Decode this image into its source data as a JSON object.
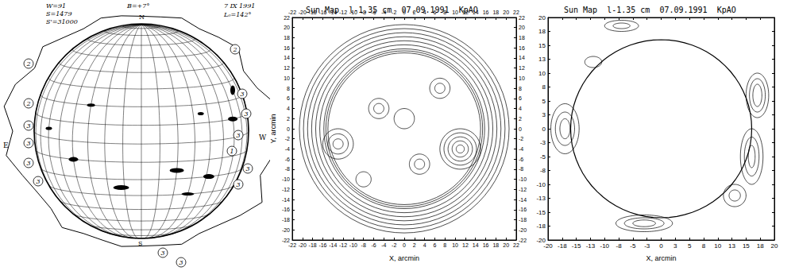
{
  "diagram": {
    "type": "solar_drawing",
    "stats": [
      "W=91",
      "S=1479",
      "S'=31000"
    ],
    "tilt": "B=+7°",
    "north": "N",
    "date": "7 IX 1991",
    "longitude": "L₀=142°",
    "east": "E",
    "west": "W",
    "south": "S",
    "regions": [
      "2",
      "2",
      "3",
      "3",
      "3",
      "3",
      "2",
      "3",
      "3",
      "3",
      "1",
      "3",
      "3",
      "3",
      "3"
    ]
  },
  "chart_data": [
    {
      "type": "contour",
      "title": "Sun Map  l-1.35 cm  07.09.1991  KpAO",
      "x_label": "X, arcmin",
      "y_label": "Y, arcmin",
      "color": "#000000",
      "xlim": [
        -22,
        22
      ],
      "ylim": [
        -22,
        22
      ],
      "xticks": [
        -22,
        -20,
        -18,
        -16,
        -14,
        -12,
        -10,
        -8,
        -6,
        -4,
        -2,
        0,
        2,
        4,
        6,
        8,
        10,
        12,
        14,
        16,
        18,
        20,
        22
      ],
      "yticks": [
        -22,
        -20,
        -18,
        -16,
        -14,
        -12,
        -10,
        -8,
        -6,
        -4,
        -2,
        0,
        2,
        4,
        6,
        8,
        10,
        12,
        14,
        16,
        18,
        20,
        22
      ],
      "contours": [
        {
          "x": 0,
          "y": 0,
          "rx": 15,
          "ry": 15
        },
        {
          "x": 0,
          "y": 0,
          "rx": 15.4,
          "ry": 15.4
        },
        {
          "x": 0,
          "y": 0,
          "rx": 15.8,
          "ry": 15.8
        },
        {
          "x": 0,
          "y": 0,
          "rx": 16.6,
          "ry": 16.6
        },
        {
          "x": 0,
          "y": 0,
          "rx": 17.4,
          "ry": 17.4
        },
        {
          "x": 0,
          "y": 0,
          "rx": 18.2,
          "ry": 18.2
        },
        {
          "x": 0,
          "y": 0,
          "rx": 19,
          "ry": 19
        },
        {
          "x": 0,
          "y": 0,
          "rx": 19.8,
          "ry": 19.8
        },
        {
          "x": 0,
          "y": 0,
          "rx": 20.6,
          "ry": 20.6
        },
        {
          "x": 11,
          "y": -4,
          "rx": 0.8,
          "ry": 0.8
        },
        {
          "x": 11,
          "y": -4,
          "rx": 1.6,
          "ry": 1.6
        },
        {
          "x": 11,
          "y": -4,
          "rx": 2.4,
          "ry": 2.4
        },
        {
          "x": 11,
          "y": -4,
          "rx": 3.2,
          "ry": 3.2
        },
        {
          "x": 11,
          "y": -4,
          "rx": 4,
          "ry": 4
        },
        {
          "x": -13,
          "y": -3,
          "rx": 1,
          "ry": 1
        },
        {
          "x": -13,
          "y": -3,
          "rx": 2,
          "ry": 2
        },
        {
          "x": -13,
          "y": -3,
          "rx": 3,
          "ry": 3
        },
        {
          "x": -5,
          "y": 4,
          "rx": 1,
          "ry": 1
        },
        {
          "x": -5,
          "y": 4,
          "rx": 2,
          "ry": 2
        },
        {
          "x": 3,
          "y": -7,
          "rx": 1,
          "ry": 1
        },
        {
          "x": 3,
          "y": -7,
          "rx": 2,
          "ry": 2
        },
        {
          "x": 7,
          "y": 8,
          "rx": 1,
          "ry": 1
        },
        {
          "x": 7,
          "y": 8,
          "rx": 2,
          "ry": 2
        },
        {
          "x": -8,
          "y": -10,
          "rx": 1.5,
          "ry": 1.5
        },
        {
          "x": 0,
          "y": 2,
          "rx": 2,
          "ry": 2
        }
      ]
    },
    {
      "type": "contour",
      "title": "Sun Map  l-1.35 cm  07.09.1991  KpAO",
      "x_label": "X, arcmin",
      "color": "#000000",
      "xlim": [
        -20,
        20
      ],
      "ylim": [
        -20,
        20
      ],
      "xticks": [
        -20,
        {
          "value": -17.5,
          "label": "-18"
        },
        -15,
        {
          "value": -12.5,
          "label": "-13"
        },
        -10,
        {
          "value": -7.5,
          "label": "-8"
        },
        -5,
        {
          "value": -2.5,
          "label": "-3"
        },
        0,
        {
          "value": 2.5,
          "label": "3"
        },
        5,
        {
          "value": 7.5,
          "label": "8"
        },
        10,
        {
          "value": 12.5,
          "label": "13"
        },
        15,
        {
          "value": 17.5,
          "label": "18"
        },
        20
      ],
      "yticks": [
        -20,
        {
          "value": -17.5,
          "label": "-18"
        },
        -15,
        {
          "value": -12.5,
          "label": "-13"
        },
        -10,
        {
          "value": -7.5,
          "label": "-8"
        },
        -5,
        {
          "value": -2.5,
          "label": "-3"
        },
        0,
        {
          "value": 2.5,
          "label": "3"
        },
        5,
        {
          "value": 7.5,
          "label": "8"
        },
        10,
        {
          "value": 12.5,
          "label": "13"
        },
        15,
        {
          "value": 17.5,
          "label": "18"
        },
        20
      ],
      "disk_center": [
        0,
        0
      ],
      "disk_radius": 16,
      "contours": [
        {
          "x": 17,
          "y": 6,
          "rx": 2,
          "ry": 4
        },
        {
          "x": 17,
          "y": 6,
          "rx": 1.4,
          "ry": 3
        },
        {
          "x": 17,
          "y": 6,
          "rx": 0.8,
          "ry": 2
        },
        {
          "x": 16,
          "y": -5,
          "rx": 2,
          "ry": 5
        },
        {
          "x": 16,
          "y": -5,
          "rx": 1.3,
          "ry": 3.5
        },
        {
          "x": 16,
          "y": -5,
          "rx": 0.6,
          "ry": 2
        },
        {
          "x": -17,
          "y": 0,
          "rx": 2.5,
          "ry": 4.5
        },
        {
          "x": -17,
          "y": 0,
          "rx": 1.7,
          "ry": 3
        },
        {
          "x": -17,
          "y": 0,
          "rx": 0.9,
          "ry": 1.8
        },
        {
          "x": -3,
          "y": -17,
          "rx": 5,
          "ry": 1.5
        },
        {
          "x": -3,
          "y": -17,
          "rx": 3.5,
          "ry": 1
        },
        {
          "x": -3,
          "y": -17,
          "rx": 2,
          "ry": 0.6
        },
        {
          "x": -7,
          "y": 18.5,
          "rx": 3,
          "ry": 1
        },
        {
          "x": -7,
          "y": 18.5,
          "rx": 1.5,
          "ry": 0.5
        },
        {
          "x": 13,
          "y": -12,
          "rx": 2,
          "ry": 2
        },
        {
          "x": 13,
          "y": -12,
          "rx": 1,
          "ry": 1
        },
        {
          "x": -12,
          "y": 12,
          "rx": 1.5,
          "ry": 1
        }
      ]
    }
  ]
}
